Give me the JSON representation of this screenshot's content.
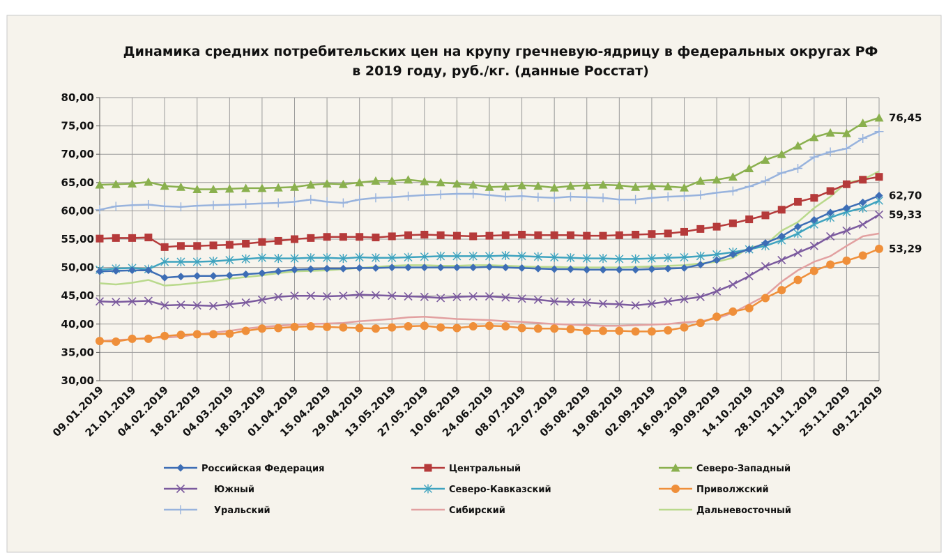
{
  "chart_data": {
    "type": "line",
    "title": [
      "Динамика средних потребительских цен на крупу гречневую-ядрицу в федеральных округах РФ",
      "в 2019 году, руб./кг.  (данные Росстат)"
    ],
    "categories": [
      "09.01.2019",
      null,
      "21.01.2019",
      null,
      "04.02.2019",
      null,
      "18.02.2019",
      null,
      "04.03.2019",
      null,
      "18.03.2019",
      null,
      "01.04.2019",
      null,
      "15.04.2019",
      null,
      "29.04.2019",
      null,
      "13.05.2019",
      null,
      "27.05.2019",
      null,
      "10.06.2019",
      null,
      "24.06.2019",
      null,
      "08.07.2019",
      null,
      "22.07.2019",
      null,
      "05.08.2019",
      null,
      "19.08.2019",
      null,
      "02.09.2019",
      null,
      "16.09.2019",
      null,
      "30.09.2019",
      null,
      "14.10.2019",
      null,
      "28.10.2019",
      null,
      "11.11.2019",
      null,
      "25.11.2019",
      null,
      "09.12.2019"
    ],
    "ylim": [
      30,
      80
    ],
    "yticks": [
      {
        "value": 30,
        "label": "30,00"
      },
      {
        "value": 35,
        "label": "35,00"
      },
      {
        "value": 40,
        "label": "40,00"
      },
      {
        "value": 45,
        "label": "45,00"
      },
      {
        "value": 50,
        "label": "50,00"
      },
      {
        "value": 55,
        "label": "55,00"
      },
      {
        "value": 60,
        "label": "60,00"
      },
      {
        "value": 65,
        "label": "65,00"
      },
      {
        "value": 70,
        "label": "70,00"
      },
      {
        "value": 75,
        "label": "75,00"
      },
      {
        "value": 80,
        "label": "80,00"
      }
    ],
    "grid": true,
    "legend": "bottom",
    "series": [
      {
        "name": "Российская Федерация",
        "color": "#3d6db5",
        "marker": "diamond",
        "values": [
          49.3,
          49.4,
          49.5,
          49.5,
          48.2,
          48.4,
          48.5,
          48.5,
          48.6,
          48.8,
          49.0,
          49.3,
          49.6,
          49.7,
          49.8,
          49.8,
          49.9,
          49.9,
          50.0,
          50.0,
          50.0,
          50.0,
          50.0,
          50.0,
          50.1,
          50.0,
          49.9,
          49.8,
          49.7,
          49.7,
          49.6,
          49.6,
          49.6,
          49.6,
          49.7,
          49.8,
          49.9,
          50.5,
          51.3,
          52.3,
          53.2,
          54.3,
          55.5,
          57.2,
          58.4,
          59.7,
          60.5,
          61.5,
          62.7
        ],
        "value_labels": [
          null,
          null,
          null,
          null,
          null,
          null,
          null,
          null,
          null,
          null,
          null,
          null,
          null,
          null,
          null,
          null,
          null,
          null,
          null,
          null,
          null,
          null,
          null,
          null,
          null,
          null,
          null,
          null,
          null,
          null,
          null,
          null,
          null,
          null,
          null,
          null,
          null,
          null,
          null,
          null,
          null,
          null,
          null,
          null,
          null,
          null,
          null,
          null,
          "62,70"
        ]
      },
      {
        "name": "Центральный",
        "color": "#b53a3a",
        "marker": "square",
        "values": [
          55.1,
          55.2,
          55.2,
          55.3,
          53.6,
          53.8,
          53.8,
          53.9,
          54.0,
          54.2,
          54.5,
          54.7,
          55.0,
          55.2,
          55.4,
          55.4,
          55.4,
          55.3,
          55.5,
          55.7,
          55.8,
          55.7,
          55.6,
          55.5,
          55.6,
          55.7,
          55.8,
          55.7,
          55.7,
          55.7,
          55.6,
          55.6,
          55.7,
          55.8,
          55.9,
          56.0,
          56.3,
          56.8,
          57.2,
          57.8,
          58.5,
          59.2,
          60.2,
          61.6,
          62.3,
          63.5,
          64.7,
          65.5,
          66.0
        ]
      },
      {
        "name": "Северо-Западный",
        "color": "#8ab04e",
        "marker": "triangle",
        "values": [
          64.6,
          64.7,
          64.8,
          65.1,
          64.4,
          64.2,
          63.8,
          63.8,
          63.9,
          64.0,
          64.0,
          64.1,
          64.2,
          64.6,
          64.8,
          64.7,
          65.0,
          65.3,
          65.3,
          65.5,
          65.2,
          65.0,
          64.8,
          64.6,
          64.2,
          64.3,
          64.5,
          64.4,
          64.1,
          64.4,
          64.5,
          64.6,
          64.5,
          64.2,
          64.4,
          64.3,
          64.1,
          65.3,
          65.5,
          66.0,
          67.5,
          69.0,
          70.0,
          71.5,
          73.0,
          73.8,
          73.7,
          75.5,
          76.45
        ],
        "value_labels": [
          null,
          null,
          null,
          null,
          null,
          null,
          null,
          null,
          null,
          null,
          null,
          null,
          null,
          null,
          null,
          null,
          null,
          null,
          null,
          null,
          null,
          null,
          null,
          null,
          null,
          null,
          null,
          null,
          null,
          null,
          null,
          null,
          null,
          null,
          null,
          null,
          null,
          null,
          null,
          null,
          null,
          null,
          null,
          null,
          null,
          null,
          null,
          null,
          "76,45"
        ]
      },
      {
        "name": "Южный",
        "color": "#7b5a9e",
        "marker": "x",
        "values": [
          44.0,
          43.9,
          44.0,
          44.1,
          43.3,
          43.4,
          43.3,
          43.2,
          43.5,
          43.8,
          44.3,
          44.8,
          45.0,
          45.0,
          44.9,
          45.0,
          45.2,
          45.1,
          45.0,
          44.9,
          44.8,
          44.6,
          44.8,
          44.9,
          44.9,
          44.7,
          44.5,
          44.3,
          44.0,
          43.9,
          43.8,
          43.6,
          43.5,
          43.3,
          43.6,
          44.0,
          44.4,
          44.8,
          45.8,
          47.0,
          48.5,
          50.2,
          51.3,
          52.6,
          53.8,
          55.5,
          56.5,
          57.6,
          59.33
        ],
        "value_labels": [
          null,
          null,
          null,
          null,
          null,
          null,
          null,
          null,
          null,
          null,
          null,
          null,
          null,
          null,
          null,
          null,
          null,
          null,
          null,
          null,
          null,
          null,
          null,
          null,
          null,
          null,
          null,
          null,
          null,
          null,
          null,
          null,
          null,
          null,
          null,
          null,
          null,
          null,
          null,
          null,
          null,
          null,
          null,
          null,
          null,
          null,
          null,
          null,
          "59,33"
        ]
      },
      {
        "name": "Северо-Кавказский",
        "color": "#3ea3bf",
        "marker": "star",
        "values": [
          49.6,
          49.8,
          49.9,
          49.7,
          51.0,
          51.0,
          51.0,
          51.1,
          51.3,
          51.5,
          51.7,
          51.6,
          51.6,
          51.7,
          51.7,
          51.6,
          51.8,
          51.7,
          51.7,
          51.8,
          51.9,
          52.0,
          52.0,
          52.0,
          52.0,
          52.1,
          52.0,
          51.9,
          51.8,
          51.7,
          51.6,
          51.6,
          51.5,
          51.5,
          51.6,
          51.7,
          51.8,
          52.0,
          52.3,
          52.7,
          53.2,
          53.8,
          54.8,
          56.0,
          57.6,
          58.8,
          59.8,
          60.5,
          61.8
        ]
      },
      {
        "name": "Приволжский",
        "color": "#ef8f3a",
        "marker": "circle",
        "values": [
          37.0,
          36.9,
          37.4,
          37.4,
          37.9,
          38.1,
          38.2,
          38.2,
          38.3,
          38.8,
          39.2,
          39.3,
          39.5,
          39.6,
          39.5,
          39.4,
          39.3,
          39.2,
          39.4,
          39.6,
          39.7,
          39.4,
          39.3,
          39.6,
          39.7,
          39.6,
          39.3,
          39.2,
          39.2,
          39.1,
          38.8,
          38.8,
          38.8,
          38.7,
          38.7,
          38.9,
          39.4,
          40.2,
          41.3,
          42.2,
          42.8,
          44.6,
          46.0,
          47.8,
          49.4,
          50.5,
          51.2,
          52.1,
          53.29
        ],
        "value_labels": [
          null,
          null,
          null,
          null,
          null,
          null,
          null,
          null,
          null,
          null,
          null,
          null,
          null,
          null,
          null,
          null,
          null,
          null,
          null,
          null,
          null,
          null,
          null,
          null,
          null,
          null,
          null,
          null,
          null,
          null,
          null,
          null,
          null,
          null,
          null,
          null,
          null,
          null,
          null,
          null,
          null,
          null,
          null,
          null,
          null,
          null,
          null,
          null,
          "53,29"
        ]
      },
      {
        "name": "Уральский",
        "color": "#98b3dd",
        "marker": "plus",
        "values": [
          60.2,
          60.8,
          61.0,
          61.1,
          60.8,
          60.7,
          60.9,
          61.0,
          61.1,
          61.2,
          61.3,
          61.4,
          61.6,
          62.0,
          61.6,
          61.4,
          62.0,
          62.3,
          62.4,
          62.6,
          62.8,
          62.9,
          63.0,
          63.0,
          62.8,
          62.5,
          62.6,
          62.4,
          62.3,
          62.5,
          62.4,
          62.3,
          62.0,
          62.0,
          62.3,
          62.5,
          62.6,
          62.8,
          63.2,
          63.5,
          64.3,
          65.3,
          66.7,
          67.5,
          69.5,
          70.4,
          71.0,
          72.8,
          74.0
        ]
      },
      {
        "name": "Сибирский",
        "color": "#e2a0a0",
        "marker": "none",
        "values": [
          37.0,
          37.2,
          37.3,
          37.6,
          37.6,
          37.8,
          38.2,
          38.5,
          38.8,
          39.2,
          39.5,
          39.7,
          39.9,
          40.0,
          40.1,
          40.2,
          40.5,
          40.7,
          40.9,
          41.2,
          41.3,
          41.1,
          40.9,
          40.8,
          40.7,
          40.5,
          40.4,
          40.2,
          40.0,
          39.9,
          39.8,
          39.7,
          39.7,
          39.8,
          39.9,
          40.0,
          40.3,
          40.5,
          41.0,
          42.0,
          43.5,
          45.0,
          47.5,
          49.5,
          51.0,
          52.0,
          53.8,
          55.5,
          56.0
        ]
      },
      {
        "name": "Дальневосточный",
        "color": "#b9d98c",
        "marker": "none",
        "values": [
          47.2,
          47.0,
          47.3,
          47.8,
          46.8,
          47.0,
          47.3,
          47.6,
          48.0,
          48.3,
          48.6,
          49.0,
          49.3,
          49.4,
          49.5,
          49.7,
          49.9,
          50.1,
          50.3,
          50.4,
          50.4,
          50.3,
          50.3,
          50.4,
          50.4,
          50.3,
          50.2,
          50.1,
          50.1,
          50.0,
          50.0,
          50.0,
          50.0,
          50.1,
          50.2,
          50.3,
          50.4,
          50.7,
          51.0,
          51.7,
          53.5,
          54.0,
          56.5,
          58.0,
          60.5,
          62.5,
          65.0,
          65.5,
          67.0
        ]
      }
    ]
  }
}
